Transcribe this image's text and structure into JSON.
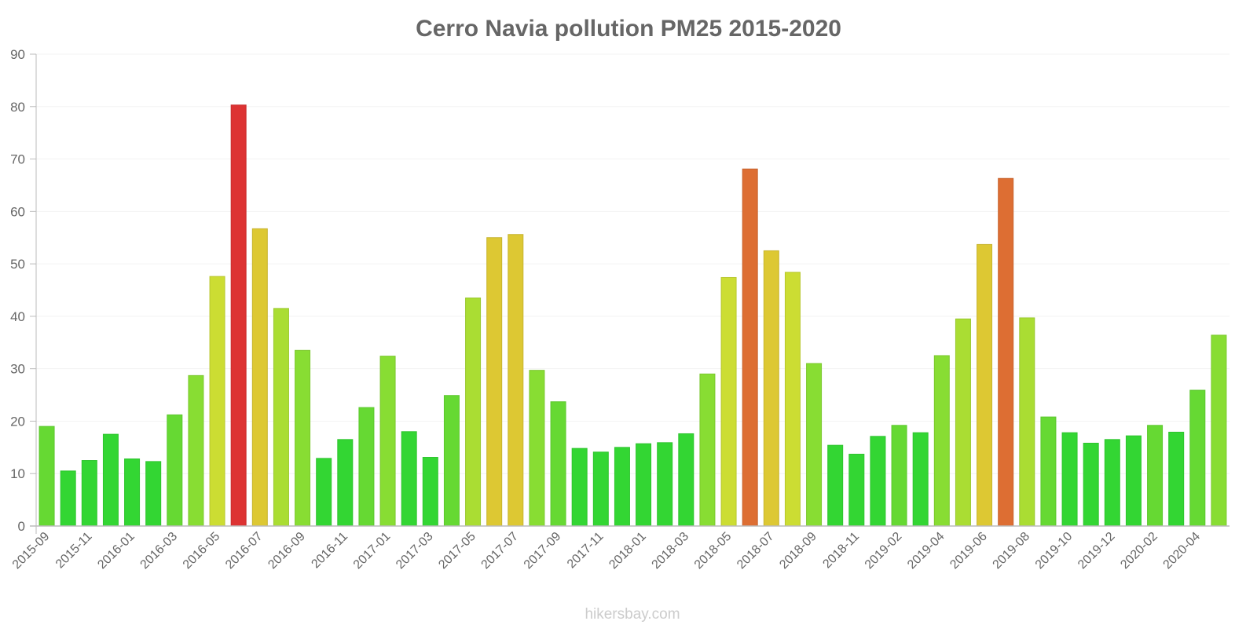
{
  "chart_data": {
    "type": "bar",
    "title": "Cerro Navia pollution PM25 2015-2020",
    "xlabel": "",
    "ylabel": "",
    "ylim": [
      0,
      90
    ],
    "yticks": [
      0,
      10,
      20,
      30,
      40,
      50,
      60,
      70,
      80,
      90
    ],
    "grid": true,
    "categories": [
      "2015-09",
      "2015-10",
      "2015-11",
      "2015-12",
      "2016-01",
      "2016-02",
      "2016-03",
      "2016-04",
      "2016-05",
      "2016-06",
      "2016-07",
      "2016-08",
      "2016-09",
      "2016-10",
      "2016-11",
      "2016-12",
      "2017-01",
      "2017-02",
      "2017-03",
      "2017-04",
      "2017-05",
      "2017-06",
      "2017-07",
      "2017-08",
      "2017-09",
      "2017-10",
      "2017-11",
      "2017-12",
      "2018-01",
      "2018-02",
      "2018-03",
      "2018-04",
      "2018-05",
      "2018-06",
      "2018-07",
      "2018-08",
      "2018-09",
      "2018-10",
      "2018-11",
      "2019-01",
      "2019-02",
      "2019-03",
      "2019-04",
      "2019-05",
      "2019-06",
      "2019-07",
      "2019-08",
      "2019-09",
      "2019-10",
      "2019-11",
      "2019-12",
      "2020-01",
      "2020-02",
      "2020-03",
      "2020-04",
      "2020-05"
    ],
    "shown_tick_labels": [
      "2015-09",
      "2015-11",
      "2016-01",
      "2016-03",
      "2016-05",
      "2016-07",
      "2016-09",
      "2016-11",
      "2017-01",
      "2017-03",
      "2017-05",
      "2017-07",
      "2017-09",
      "2017-11",
      "2018-01",
      "2018-03",
      "2018-05",
      "2018-07",
      "2018-09",
      "2018-11",
      "2019-02",
      "2019-04",
      "2019-06",
      "2019-08",
      "2019-10",
      "2019-12",
      "2020-02",
      "2020-04"
    ],
    "values": [
      19,
      10.5,
      12.5,
      17.5,
      12.8,
      12.3,
      21.2,
      28.7,
      47.6,
      80.3,
      56.7,
      41.5,
      33.5,
      12.9,
      16.5,
      22.6,
      32.4,
      18,
      13.1,
      24.9,
      43.5,
      55,
      55.6,
      29.7,
      23.7,
      14.8,
      14.1,
      15,
      15.7,
      15.9,
      17.6,
      29,
      47.4,
      68.1,
      52.5,
      48.4,
      31,
      15.4,
      13.7,
      17.1,
      19.2,
      17.8,
      32.5,
      39.5,
      53.7,
      66.3,
      39.7,
      20.8,
      17.8,
      15.8,
      16.5,
      17.2,
      19.2,
      17.9,
      25.9,
      36.4
    ],
    "watermark": "hikersbay.com"
  }
}
